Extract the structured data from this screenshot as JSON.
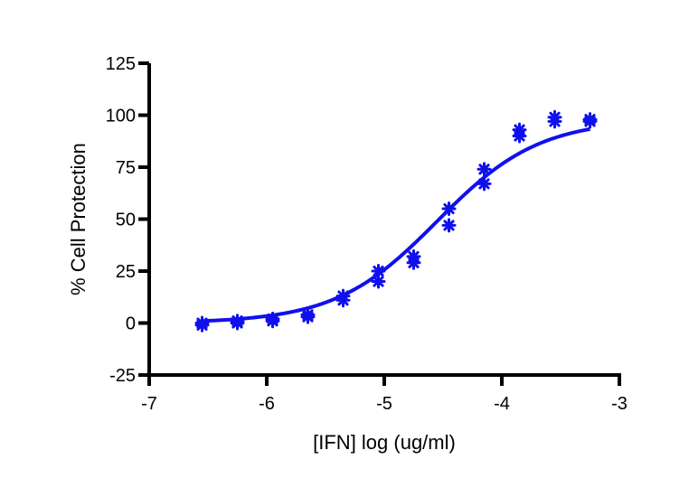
{
  "chart_data": {
    "type": "scatter",
    "xlabel": "[IFN] log (ug/ml)",
    "ylabel": "% Cell Protection",
    "xlim": [
      -7,
      -3
    ],
    "ylim": [
      -25,
      125
    ],
    "x_ticks": [
      "-7",
      "-6",
      "-5",
      "-4",
      "-3"
    ],
    "y_ticks": [
      "-25",
      "0",
      "25",
      "50",
      "75",
      "100",
      "125"
    ],
    "x_tick_values": [
      -7,
      -6,
      -5,
      -4,
      -3
    ],
    "y_tick_values": [
      -25,
      0,
      25,
      50,
      75,
      100,
      125
    ],
    "grid": false,
    "legend": "none",
    "colors": {
      "series": "#1010ee",
      "axis": "#000000"
    },
    "series": [
      {
        "points": [
          [
            -6.55,
            -1
          ],
          [
            -6.55,
            0
          ],
          [
            -6.25,
            0
          ],
          [
            -6.25,
            1
          ],
          [
            -5.95,
            1
          ],
          [
            -5.95,
            2
          ],
          [
            -5.65,
            3
          ],
          [
            -5.65,
            4
          ],
          [
            -5.35,
            11
          ],
          [
            -5.35,
            13
          ],
          [
            -5.05,
            20
          ],
          [
            -5.05,
            25
          ],
          [
            -4.75,
            29
          ],
          [
            -4.75,
            32
          ],
          [
            -4.45,
            47
          ],
          [
            -4.45,
            55
          ],
          [
            -4.15,
            67
          ],
          [
            -4.15,
            74
          ],
          [
            -3.85,
            90
          ],
          [
            -3.85,
            93
          ],
          [
            -3.55,
            97
          ],
          [
            -3.55,
            99
          ],
          [
            -3.25,
            97
          ],
          [
            -3.25,
            98
          ]
        ],
        "fit": {
          "type": "sigmoid",
          "bottom": 0,
          "top": 98,
          "log_ec50": -4.55,
          "hill_slope": 1.0
        }
      }
    ]
  }
}
